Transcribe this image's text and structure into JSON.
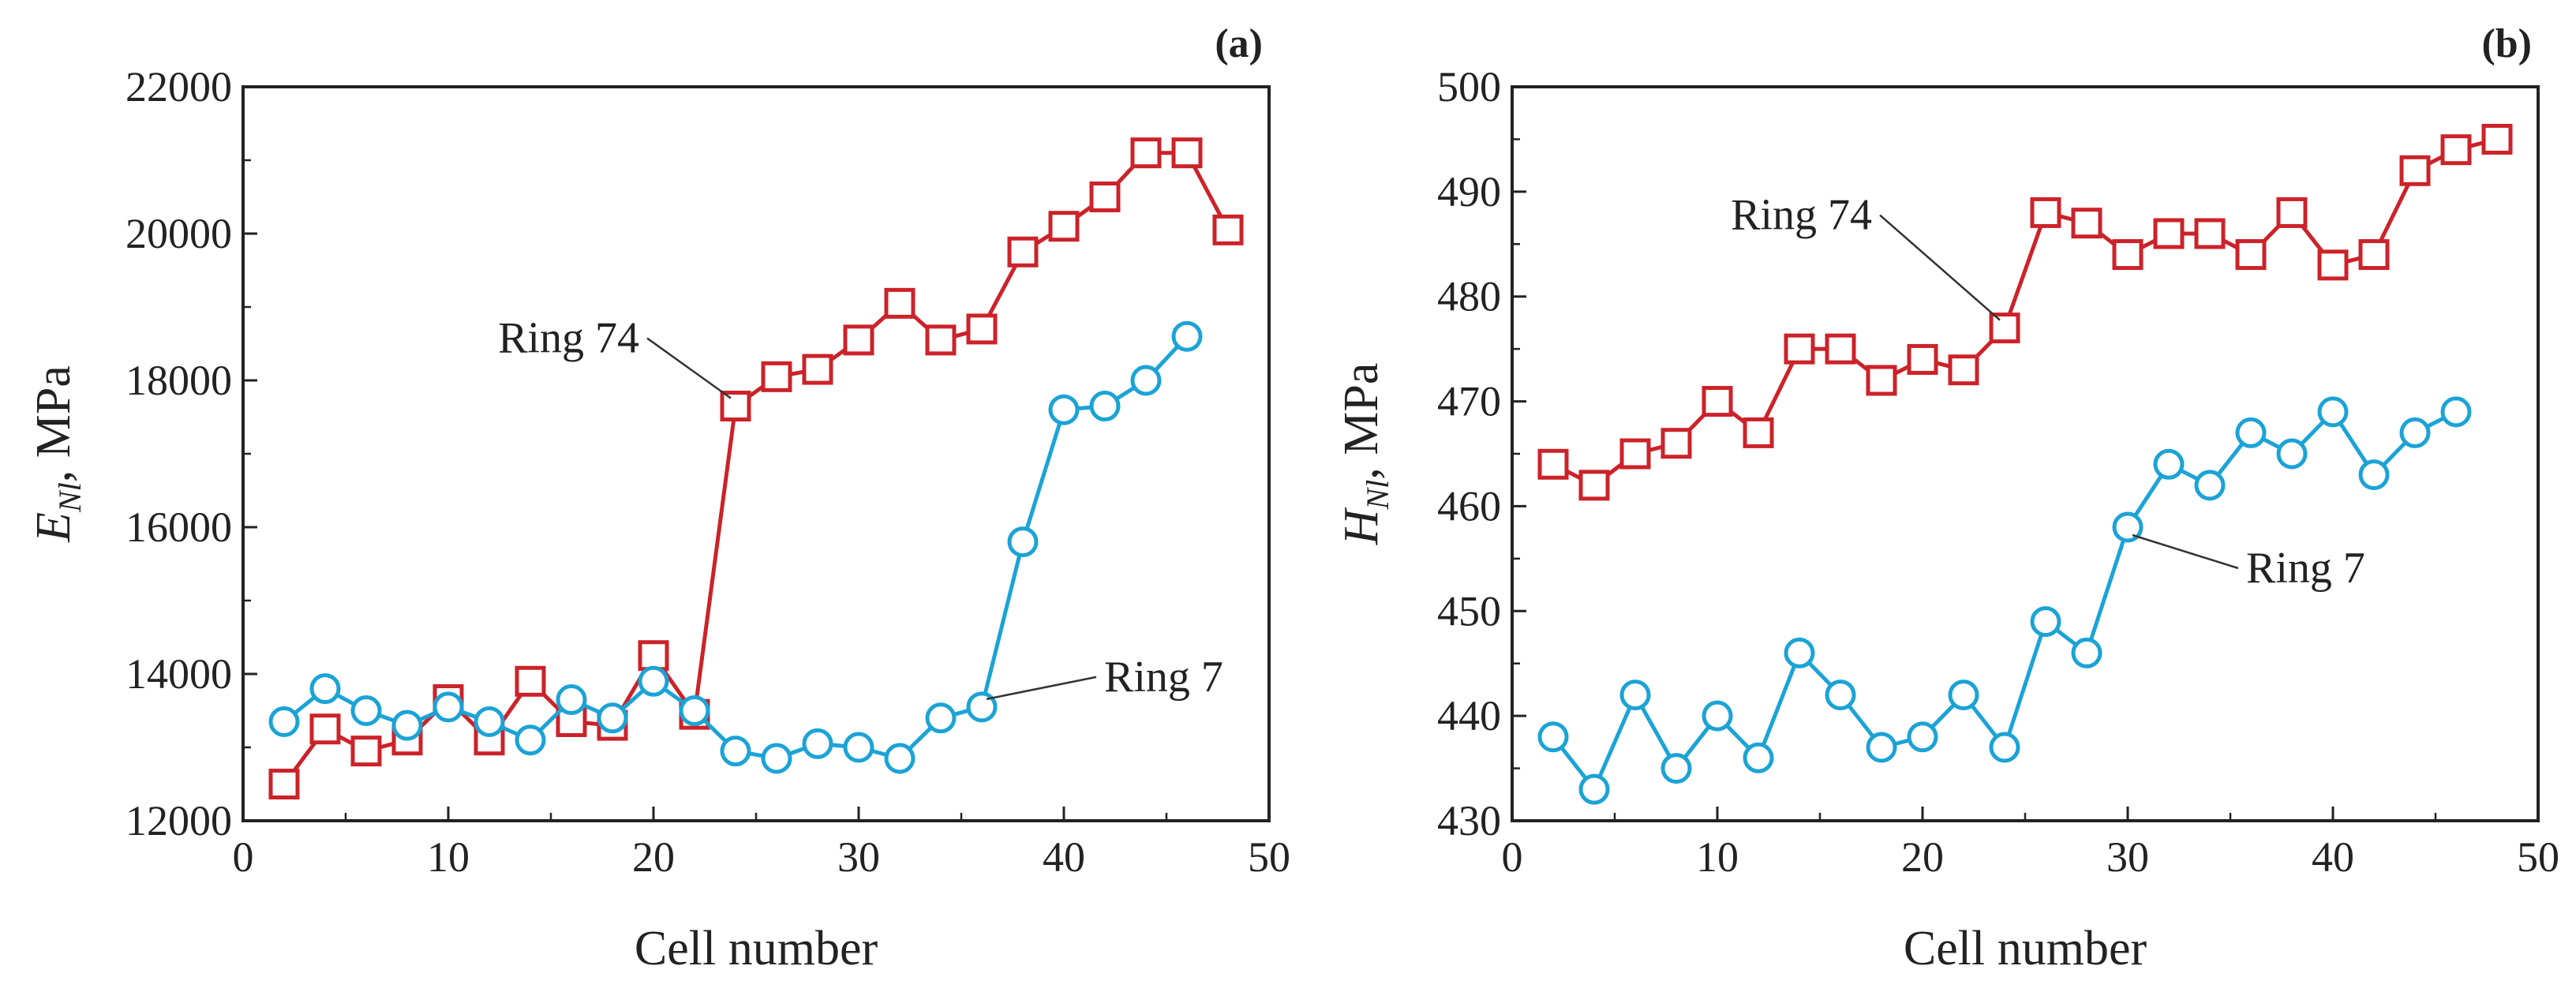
{
  "colors": {
    "ring74": "#cc2229",
    "ring7": "#1ba3d6",
    "axis": "#222222",
    "leader": "#333333"
  },
  "chart_data": [
    {
      "type": "line",
      "panel_label": "(a)",
      "xlabel": "Cell number",
      "ylabel_main": "E",
      "ylabel_sub": "Nl",
      "ylabel_unit": ", MPa",
      "xlim": [
        0,
        50
      ],
      "ylim": [
        12000,
        22000
      ],
      "xticks": [
        0,
        10,
        20,
        30,
        40,
        50
      ],
      "yticks": [
        12000,
        14000,
        16000,
        18000,
        20000,
        22000
      ],
      "series": [
        {
          "name": "Ring 74",
          "marker": "square",
          "color_key": "ring74",
          "x": [
            2,
            4,
            6,
            8,
            10,
            12,
            14,
            16,
            18,
            20,
            22,
            24,
            26,
            28,
            30,
            32,
            34,
            36,
            38,
            40,
            42,
            44,
            46,
            48
          ],
          "y": [
            12500,
            13250,
            12950,
            13100,
            13650,
            13100,
            13900,
            13350,
            13300,
            14250,
            13450,
            17650,
            18050,
            18150,
            18550,
            19050,
            18550,
            18700,
            19750,
            20100,
            20500,
            21100,
            21100,
            20050
          ]
        },
        {
          "name": "Ring 7",
          "marker": "circle",
          "color_key": "ring7",
          "x": [
            2,
            4,
            6,
            8,
            10,
            12,
            14,
            16,
            18,
            20,
            22,
            24,
            26,
            28,
            30,
            32,
            34,
            36,
            38,
            40,
            42,
            44,
            46
          ],
          "y": [
            13350,
            13800,
            13500,
            13300,
            13550,
            13350,
            13100,
            13650,
            13400,
            13900,
            13500,
            12950,
            12850,
            13050,
            13000,
            12850,
            13400,
            13550,
            15800,
            17600,
            17650,
            18000,
            18600
          ]
        }
      ],
      "annotations": [
        {
          "text": "Ring 74",
          "series": "Ring 74",
          "point_x": 24,
          "point_y": 17650
        },
        {
          "text": "Ring 7",
          "series": "Ring 7",
          "point_x": 36,
          "point_y": 13550
        }
      ]
    },
    {
      "type": "line",
      "panel_label": "(b)",
      "xlabel": "Cell number",
      "ylabel_main": "H",
      "ylabel_sub": "Nl",
      "ylabel_unit": ", MPa",
      "xlim": [
        0,
        50
      ],
      "ylim": [
        430,
        500
      ],
      "xticks": [
        0,
        10,
        20,
        30,
        40,
        50
      ],
      "yticks": [
        430,
        440,
        450,
        460,
        470,
        480,
        490,
        500
      ],
      "series": [
        {
          "name": "Ring 74",
          "marker": "square",
          "color_key": "ring74",
          "x": [
            2,
            4,
            6,
            8,
            10,
            12,
            14,
            16,
            18,
            20,
            22,
            24,
            26,
            28,
            30,
            32,
            34,
            36,
            38,
            40,
            42,
            44,
            46,
            48
          ],
          "y": [
            464,
            462,
            465,
            466,
            470,
            467,
            475,
            475,
            472,
            474,
            473,
            477,
            488,
            487,
            484,
            486,
            486,
            484,
            488,
            483,
            484,
            492,
            494,
            495
          ]
        },
        {
          "name": "Ring 7",
          "marker": "circle",
          "color_key": "ring7",
          "x": [
            2,
            4,
            6,
            8,
            10,
            12,
            14,
            16,
            18,
            20,
            22,
            24,
            26,
            28,
            30,
            32,
            34,
            36,
            38,
            40,
            42,
            44,
            46
          ],
          "y": [
            438,
            433,
            442,
            435,
            440,
            436,
            446,
            442,
            437,
            438,
            442,
            437,
            449,
            446,
            458,
            464,
            462,
            467,
            465,
            469,
            463,
            467,
            469
          ]
        }
      ],
      "annotations": [
        {
          "text": "Ring 74",
          "series": "Ring 74",
          "point_x": 24,
          "point_y": 477
        },
        {
          "text": "Ring 7",
          "series": "Ring 7",
          "point_x": 30,
          "point_y": 458
        }
      ]
    }
  ]
}
